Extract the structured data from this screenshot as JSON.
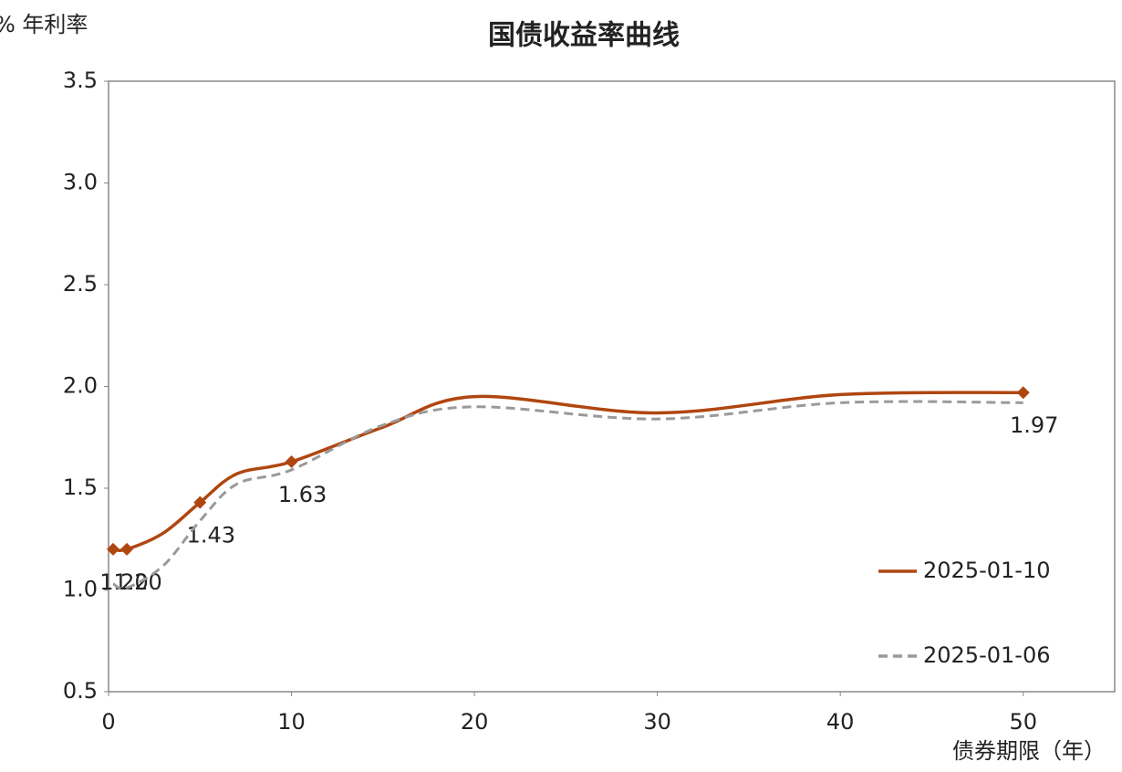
{
  "chart_data": {
    "type": "line",
    "title": "国债收益率曲线",
    "y_label": "% 年利率",
    "x_label": "债券期限（年）",
    "x": [
      0.25,
      1,
      3,
      5,
      7,
      10,
      15,
      20,
      30,
      40,
      50
    ],
    "series": [
      {
        "name": "2025-01-10",
        "color": "#b0460f",
        "dash": false,
        "values": [
          1.2,
          1.2,
          1.28,
          1.43,
          1.57,
          1.63,
          1.8,
          1.95,
          1.87,
          1.96,
          1.97
        ],
        "value_labels": [
          "1.20",
          "1.20",
          null,
          "1.43",
          null,
          "1.63",
          null,
          null,
          null,
          null,
          "1.97"
        ]
      },
      {
        "name": "2025-01-06",
        "color": "#9a9a9a",
        "dash": true,
        "values": [
          1.03,
          1.01,
          1.12,
          1.34,
          1.52,
          1.59,
          1.81,
          1.9,
          1.84,
          1.92,
          1.92
        ]
      }
    ],
    "xlim": [
      0,
      55
    ],
    "xticks": [
      0,
      10,
      20,
      30,
      40,
      50
    ],
    "ylim": [
      0.5,
      3.5
    ],
    "yticks": [
      0.5,
      {
        "value": 1.0,
        "label": "1.0"
      },
      1.5,
      {
        "value": 2.0,
        "label": "2.0"
      },
      2.5,
      {
        "value": 3.0,
        "label": "3.0"
      },
      3.5
    ],
    "grid": false
  }
}
